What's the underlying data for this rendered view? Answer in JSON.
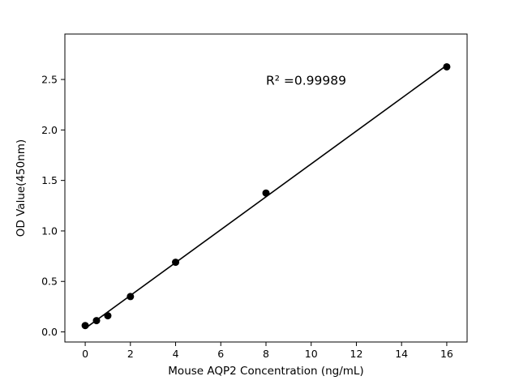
{
  "figure": {
    "background": "#ffffff"
  },
  "chart_data": {
    "type": "scatter",
    "title": "",
    "xlabel": "Mouse AQP2 Concentration (ng/mL)",
    "ylabel": "OD Value(450nm)",
    "x": [
      0,
      0.5,
      1,
      2,
      4,
      8,
      16
    ],
    "y": [
      0.063,
      0.112,
      0.16,
      0.35,
      0.69,
      1.375,
      2.625
    ],
    "trendline": true,
    "annotation": {
      "text": "R² =0.99989",
      "xy": [
        8.0,
        2.45
      ]
    },
    "xticks": [
      0,
      2,
      4,
      6,
      8,
      10,
      12,
      14,
      16
    ],
    "xtick_labels": [
      "0",
      "2",
      "4",
      "6",
      "8",
      "10",
      "12",
      "14",
      "16"
    ],
    "yticks": [
      0.0,
      0.5,
      1.0,
      1.5,
      2.0,
      2.5
    ],
    "ytick_labels": [
      "0.0",
      "0.5",
      "1.0",
      "1.5",
      "2.0",
      "2.5"
    ],
    "xlim": [
      -0.9,
      16.9
    ],
    "ylim": [
      -0.1,
      2.95
    ],
    "grid": false,
    "legend": null,
    "marker_color": "#000000",
    "line_color": "#000000",
    "axis_color": "#000000"
  }
}
